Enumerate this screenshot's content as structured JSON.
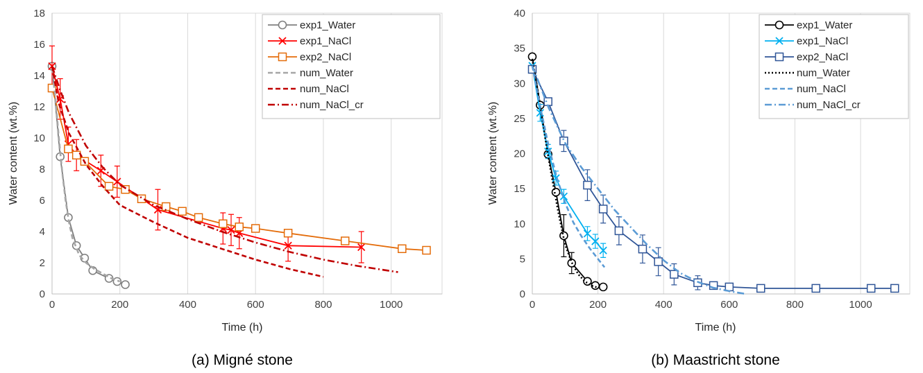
{
  "chart_data": [
    {
      "type": "line",
      "caption": "(a) Migné stone",
      "xlabel": "Time (h)",
      "ylabel": "Water content (wt.%)",
      "xlim": [
        0,
        1150
      ],
      "ylim": [
        0,
        18
      ],
      "xticks": [
        0,
        200,
        400,
        600,
        800,
        1000
      ],
      "yticks": [
        0,
        2,
        4,
        6,
        8,
        10,
        12,
        14,
        16,
        18
      ],
      "grid": "vertical",
      "legend": "top-right",
      "series": [
        {
          "name": "exp1_Water",
          "color": "#7f7f7f",
          "dash": "solid",
          "marker": "circle",
          "x": [
            0,
            24,
            48,
            72,
            96,
            120,
            168,
            192,
            216
          ],
          "y": [
            14.6,
            8.8,
            4.9,
            3.1,
            2.3,
            1.5,
            1.0,
            0.8,
            0.6
          ],
          "err": [
            0,
            0,
            0,
            0,
            0,
            0,
            0,
            0,
            0
          ]
        },
        {
          "name": "exp1_NaCl",
          "color": "#ff0000",
          "dash": "solid",
          "marker": "x",
          "x": [
            0,
            24,
            48,
            72,
            144,
            192,
            312,
            504,
            528,
            552,
            696,
            912
          ],
          "y": [
            14.6,
            12.5,
            9.6,
            8.9,
            7.9,
            7.2,
            5.4,
            4.2,
            4.1,
            3.9,
            3.1,
            3.0
          ],
          "err": [
            1.3,
            1.3,
            1.1,
            1.0,
            1.0,
            1.0,
            1.3,
            1.0,
            1.0,
            1.0,
            1.0,
            1.0
          ]
        },
        {
          "name": "exp2_NaCl",
          "color": "#e46c0a",
          "dash": "solid",
          "marker": "square",
          "x": [
            0,
            48,
            72,
            96,
            168,
            216,
            264,
            336,
            384,
            432,
            504,
            552,
            600,
            696,
            864,
            1032,
            1104
          ],
          "y": [
            13.2,
            9.3,
            8.9,
            8.5,
            6.9,
            6.7,
            6.1,
            5.6,
            5.3,
            4.9,
            4.5,
            4.3,
            4.2,
            3.9,
            3.4,
            2.9,
            2.8
          ],
          "err": [
            0,
            0,
            0,
            0,
            0,
            0,
            0,
            0,
            0,
            0,
            0,
            0,
            0,
            0,
            0,
            0,
            0
          ]
        },
        {
          "name": "num_Water",
          "color": "#a6a6a6",
          "dash": "dash",
          "marker": "none",
          "x": [
            0,
            10,
            20,
            30,
            40,
            50,
            60,
            80,
            100,
            125,
            150,
            175,
            200
          ],
          "y": [
            14.5,
            12.5,
            10.0,
            7.8,
            6.0,
            4.6,
            3.6,
            2.5,
            2.0,
            1.6,
            1.3,
            1.0,
            0.8
          ],
          "err": []
        },
        {
          "name": "num_NaCl",
          "color": "#c00000",
          "dash": "dash",
          "marker": "none",
          "x": [
            0,
            20,
            50,
            100,
            150,
            200,
            300,
            400,
            500,
            600,
            700,
            800
          ],
          "y": [
            14.6,
            12.2,
            10.3,
            8.3,
            6.9,
            5.7,
            4.6,
            3.6,
            2.9,
            2.2,
            1.6,
            1.1
          ],
          "err": []
        },
        {
          "name": "num_NaCl_cr",
          "color": "#c00000",
          "dash": "dashdot",
          "marker": "none",
          "x": [
            0,
            25,
            50,
            100,
            150,
            200,
            300,
            400,
            500,
            600,
            700,
            800,
            900,
            1020
          ],
          "y": [
            14.6,
            13.0,
            11.6,
            9.5,
            8.1,
            7.0,
            5.7,
            4.8,
            4.0,
            3.3,
            2.7,
            2.2,
            1.8,
            1.4
          ],
          "err": []
        }
      ]
    },
    {
      "type": "line",
      "caption": "(b) Maastricht stone",
      "xlabel": "Time (h)",
      "ylabel": "Water content (wt.%)",
      "xlim": [
        0,
        1150
      ],
      "ylim": [
        0,
        40
      ],
      "xticks": [
        0,
        200,
        400,
        600,
        800,
        1000
      ],
      "yticks": [
        0,
        5,
        10,
        15,
        20,
        25,
        30,
        35,
        40
      ],
      "grid": "vertical",
      "legend": "top-right",
      "series": [
        {
          "name": "exp1_Water",
          "color": "#000000",
          "dash": "solid",
          "marker": "circle",
          "x": [
            0,
            24,
            48,
            72,
            96,
            120,
            168,
            192,
            216
          ],
          "y": [
            33.8,
            26.9,
            19.9,
            14.5,
            8.3,
            4.4,
            1.8,
            1.2,
            1.0
          ],
          "err": [
            0,
            0,
            0,
            0,
            3.0,
            1.5,
            0,
            0,
            0
          ]
        },
        {
          "name": "exp1_NaCl",
          "color": "#00b0f0",
          "dash": "solid",
          "marker": "x",
          "x": [
            0,
            24,
            48,
            72,
            96,
            168,
            192,
            216
          ],
          "y": [
            32.5,
            25.8,
            20.3,
            16.5,
            13.9,
            8.6,
            7.5,
            6.2
          ],
          "err": [
            0,
            1.2,
            1.0,
            1.0,
            1.0,
            1.0,
            1.0,
            1.0
          ]
        },
        {
          "name": "exp2_NaCl",
          "color": "#2f5597",
          "dash": "solid",
          "marker": "square",
          "x": [
            0,
            48,
            96,
            168,
            216,
            264,
            336,
            384,
            432,
            504,
            552,
            600,
            696,
            864,
            1032,
            1104
          ],
          "y": [
            32.0,
            27.4,
            21.8,
            15.5,
            12.1,
            9.0,
            6.4,
            4.6,
            2.8,
            1.6,
            1.2,
            1.0,
            0.8,
            0.8,
            0.8,
            0.8
          ],
          "err": [
            0,
            0,
            1.5,
            2.2,
            2.0,
            2.0,
            2.0,
            2.0,
            1.5,
            1.0,
            0.5,
            0.3,
            0.3,
            0.3,
            0.3,
            0.3
          ]
        },
        {
          "name": "num_Water",
          "color": "#000000",
          "dash": "dot",
          "marker": "none",
          "x": [
            0,
            20,
            40,
            60,
            80,
            100,
            120,
            140,
            160,
            180,
            200
          ],
          "y": [
            33.5,
            28.0,
            22.0,
            16.5,
            11.5,
            7.0,
            4.5,
            2.8,
            1.8,
            1.2,
            0.9
          ],
          "err": []
        },
        {
          "name": "num_NaCl",
          "color": "#5b9bd5",
          "dash": "dash",
          "marker": "none",
          "x": [
            0,
            25,
            50,
            75,
            100,
            125,
            150,
            175,
            200,
            220
          ],
          "y": [
            32.5,
            26.5,
            21.0,
            16.5,
            13.0,
            10.2,
            8.2,
            6.5,
            5.0,
            3.8
          ],
          "err": []
        },
        {
          "name": "num_NaCl_cr",
          "color": "#5b9bd5",
          "dash": "dashdot",
          "marker": "none",
          "x": [
            0,
            50,
            100,
            150,
            200,
            250,
            300,
            350,
            400,
            450,
            500,
            550,
            600,
            650
          ],
          "y": [
            32.5,
            26.5,
            21.5,
            18.0,
            15.0,
            12.0,
            9.5,
            7.0,
            4.8,
            3.0,
            1.8,
            0.9,
            0.4,
            0.0
          ],
          "err": []
        }
      ]
    }
  ]
}
